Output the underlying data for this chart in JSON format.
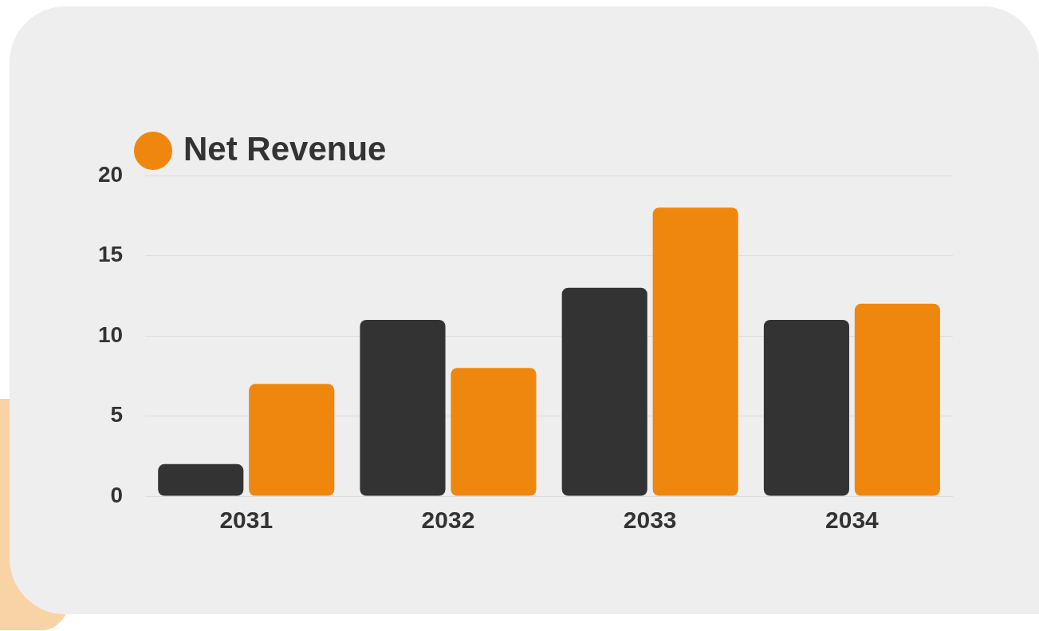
{
  "chart_data": {
    "type": "bar",
    "categories": [
      "2031",
      "2032",
      "2033",
      "2034"
    ],
    "series": [
      {
        "color": "#333333",
        "values": [
          2,
          11,
          13,
          11
        ]
      },
      {
        "name": "Net Revenue",
        "color": "#ef870f",
        "values": [
          7,
          8,
          18,
          12
        ]
      }
    ],
    "ylim": [
      0,
      20
    ],
    "yticks": [
      0,
      5,
      10,
      15,
      20
    ],
    "grid": "y",
    "legend": "top left"
  }
}
